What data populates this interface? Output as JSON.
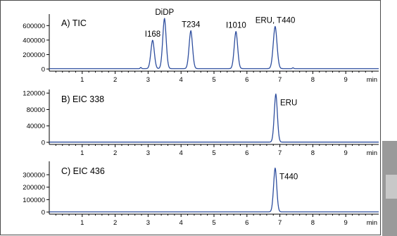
{
  "colors": {
    "trace": "#2e4e9e",
    "frame": "#4a4a4a",
    "text": "#000000"
  },
  "chart_data": [
    {
      "type": "line",
      "title": "A) TIC",
      "xlabel": "min",
      "xlim": [
        0,
        10
      ],
      "ylim": [
        0,
        720000
      ],
      "x_ticks": [
        1,
        2,
        3,
        4,
        5,
        6,
        7,
        8,
        9
      ],
      "y_ticks": [
        0,
        200000,
        400000,
        600000
      ],
      "y_tick_labels": [
        "0",
        "200000",
        "400000",
        "600000"
      ],
      "baseline": 5000,
      "peaks": [
        {
          "x": 2.78,
          "y": 22000,
          "width": 0.02
        },
        {
          "x": 3.14,
          "y": 400000,
          "width": 0.055
        },
        {
          "x": 3.5,
          "y": 700000,
          "width": 0.055
        },
        {
          "x": 4.3,
          "y": 530000,
          "width": 0.055
        },
        {
          "x": 5.67,
          "y": 520000,
          "width": 0.055
        },
        {
          "x": 6.86,
          "y": 590000,
          "width": 0.06
        },
        {
          "x": 7.4,
          "y": 18000,
          "width": 0.02
        }
      ],
      "annotations": [
        {
          "text": "I168",
          "x": 3.14,
          "y": 400000
        },
        {
          "text": "DiDP",
          "x": 3.5,
          "y": 700000
        },
        {
          "text": "T234",
          "x": 4.3,
          "y": 530000
        },
        {
          "text": "I1010",
          "x": 5.67,
          "y": 520000
        },
        {
          "text": "ERU, T440",
          "x": 6.86,
          "y": 590000
        }
      ]
    },
    {
      "type": "line",
      "title": "B) EIC 338",
      "xlabel": "min",
      "xlim": [
        0,
        10
      ],
      "ylim": [
        0,
        122000
      ],
      "x_ticks": [
        1,
        2,
        3,
        4,
        5,
        6,
        7,
        8,
        9
      ],
      "y_ticks": [
        0,
        40000,
        80000,
        120000
      ],
      "y_tick_labels": [
        "0",
        "40000",
        "80000",
        "120000"
      ],
      "baseline": 500,
      "peaks": [
        {
          "x": 6.88,
          "y": 118000,
          "width": 0.05
        }
      ],
      "annotations": [
        {
          "text": "ERU",
          "x": 6.88,
          "y": 118000
        }
      ]
    },
    {
      "type": "line",
      "title": "C) EIC 436",
      "xlabel": "min",
      "xlim": [
        0,
        10
      ],
      "ylim": [
        0,
        385000
      ],
      "x_ticks": [
        1,
        2,
        3,
        4,
        5,
        6,
        7,
        8,
        9
      ],
      "y_ticks": [
        0,
        100000,
        200000,
        300000
      ],
      "y_tick_labels": [
        "0",
        "100000",
        "200000",
        "300000"
      ],
      "baseline": 1500,
      "peaks": [
        {
          "x": 6.86,
          "y": 355000,
          "width": 0.05
        }
      ],
      "annotations": [
        {
          "text": "T440",
          "x": 6.86,
          "y": 355000
        }
      ]
    }
  ]
}
